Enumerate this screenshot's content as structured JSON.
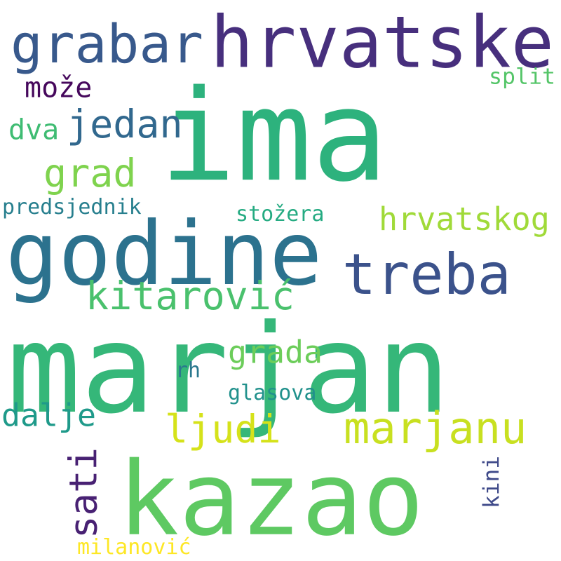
{
  "words": [
    {
      "text": "ima",
      "color": "#2db27d"
    },
    {
      "text": "marjan",
      "color": "#35b779"
    },
    {
      "text": "kazao",
      "color": "#5ec962"
    },
    {
      "text": "godine",
      "color": "#2c728e"
    },
    {
      "text": "hrvatske",
      "color": "#472f7d"
    },
    {
      "text": "treba",
      "color": "#3b528b"
    },
    {
      "text": "grabar",
      "color": "#38598c"
    },
    {
      "text": "marjanu",
      "color": "#c8e020"
    },
    {
      "text": "kitarović",
      "color": "#4ac16d"
    },
    {
      "text": "jedan",
      "color": "#31688e"
    },
    {
      "text": "grad",
      "color": "#7fd34e"
    },
    {
      "text": "ljudi",
      "color": "#d5e21a"
    },
    {
      "text": "sati",
      "color": "#482173"
    },
    {
      "text": "hrvatskog",
      "color": "#a0da39"
    },
    {
      "text": "grada",
      "color": "#6ccd5a"
    },
    {
      "text": "dalje",
      "color": "#1f9a8a"
    },
    {
      "text": "može",
      "color": "#46085c"
    },
    {
      "text": "dva",
      "color": "#3fbc73"
    },
    {
      "text": "split",
      "color": "#54c568"
    },
    {
      "text": "predsjednik",
      "color": "#277f8e"
    },
    {
      "text": "stožera",
      "color": "#25ab82"
    },
    {
      "text": "glasova",
      "color": "#21918c"
    },
    {
      "text": "rh",
      "color": "#2a788e"
    },
    {
      "text": "kini",
      "color": "#3e4989"
    },
    {
      "text": "milanović",
      "color": "#fde725"
    }
  ]
}
